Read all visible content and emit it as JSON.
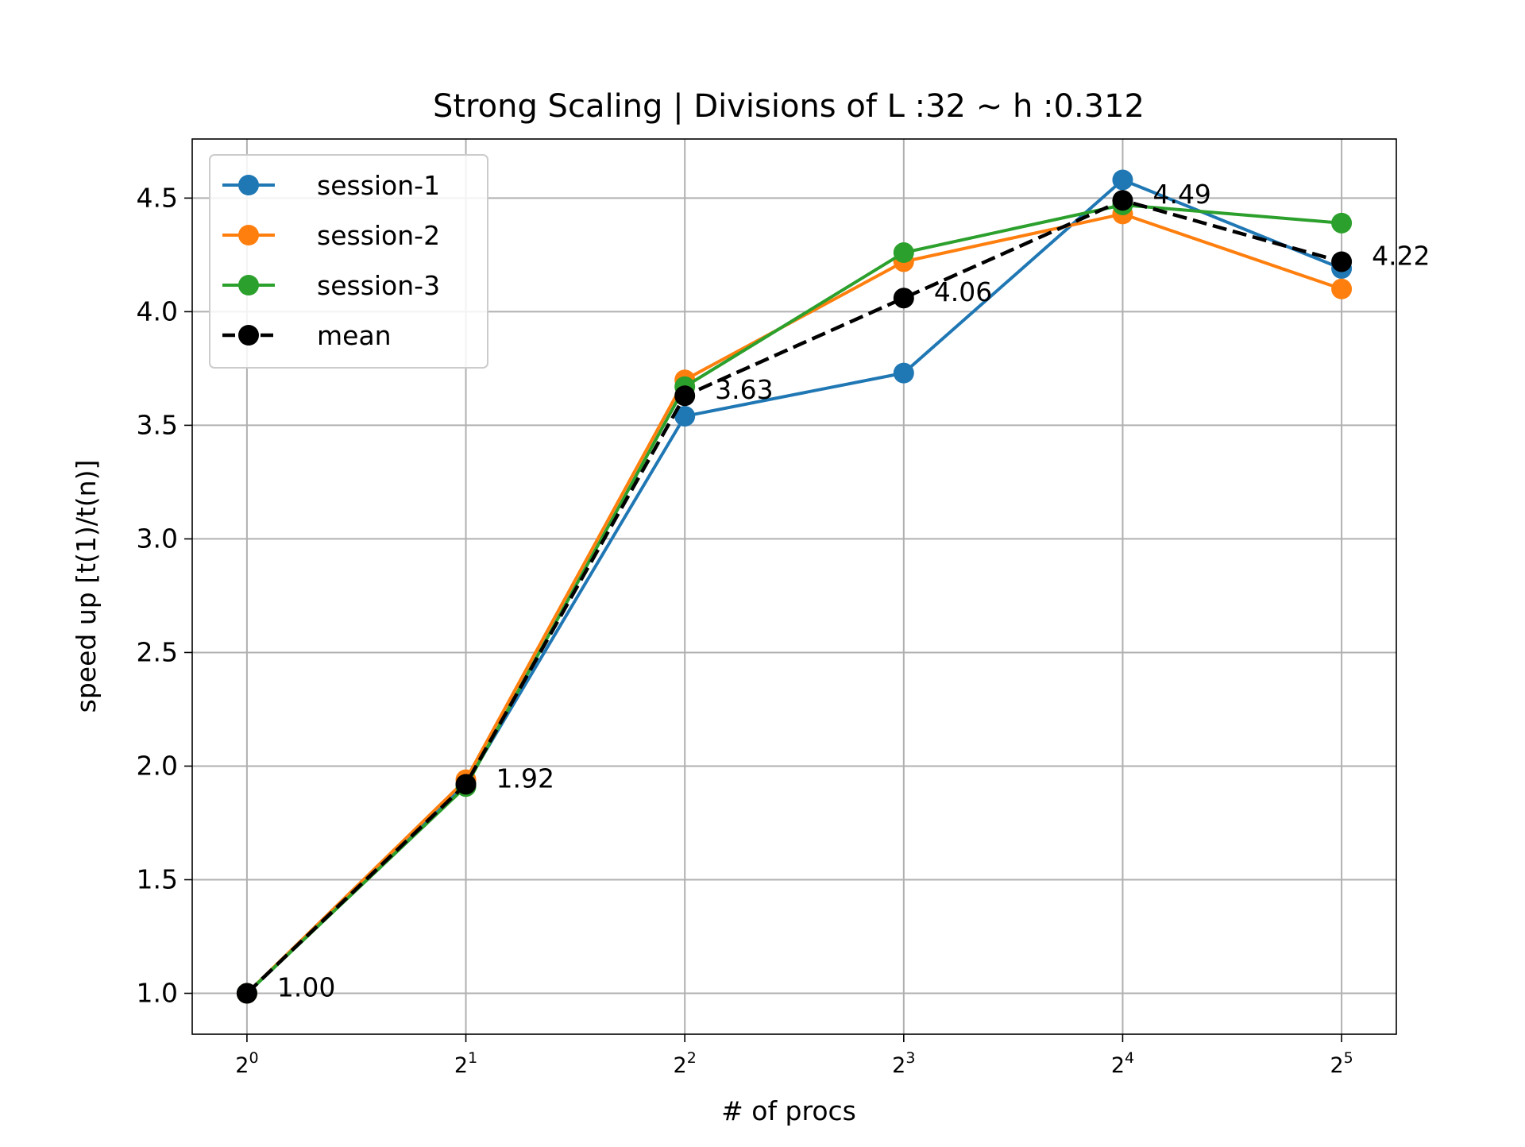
{
  "chart_data": {
    "type": "line",
    "title": "Strong Scaling | Divisions of L :32 ~ h :0.312",
    "xlabel": "# of procs",
    "ylabel": "speed up [t(1)/t(n)]",
    "x_scale": "log2",
    "x": [
      1,
      2,
      4,
      8,
      16,
      32
    ],
    "x_tick_labels": [
      {
        "base": "2",
        "exp": "0"
      },
      {
        "base": "2",
        "exp": "1"
      },
      {
        "base": "2",
        "exp": "2"
      },
      {
        "base": "2",
        "exp": "3"
      },
      {
        "base": "2",
        "exp": "4"
      },
      {
        "base": "2",
        "exp": "5"
      }
    ],
    "y_ticks": [
      "1.0",
      "1.5",
      "2.0",
      "2.5",
      "3.0",
      "3.5",
      "4.0",
      "4.5"
    ],
    "ylim": [
      0.82,
      4.76
    ],
    "grid": true,
    "legend_position": "upper-left",
    "series": [
      {
        "name": "session-1",
        "color": "#1f77b4",
        "style": "solid",
        "values": [
          1.0,
          1.92,
          3.54,
          3.73,
          4.58,
          4.19
        ]
      },
      {
        "name": "session-2",
        "color": "#ff7f0e",
        "style": "solid",
        "values": [
          1.0,
          1.94,
          3.7,
          4.22,
          4.43,
          4.1
        ]
      },
      {
        "name": "session-3",
        "color": "#2ca02c",
        "style": "solid",
        "values": [
          1.0,
          1.91,
          3.67,
          4.26,
          4.47,
          4.39
        ]
      },
      {
        "name": "mean",
        "color": "#000000",
        "style": "dashed",
        "values": [
          1.0,
          1.92,
          3.63,
          4.06,
          4.49,
          4.22
        ]
      }
    ],
    "annotations": [
      {
        "x": 1,
        "y": 1.0,
        "text": "1.00"
      },
      {
        "x": 2,
        "y": 1.92,
        "text": "1.92"
      },
      {
        "x": 4,
        "y": 3.63,
        "text": "3.63"
      },
      {
        "x": 8,
        "y": 4.06,
        "text": "4.06"
      },
      {
        "x": 16,
        "y": 4.49,
        "text": "4.49"
      },
      {
        "x": 32,
        "y": 4.22,
        "text": "4.22"
      }
    ]
  }
}
